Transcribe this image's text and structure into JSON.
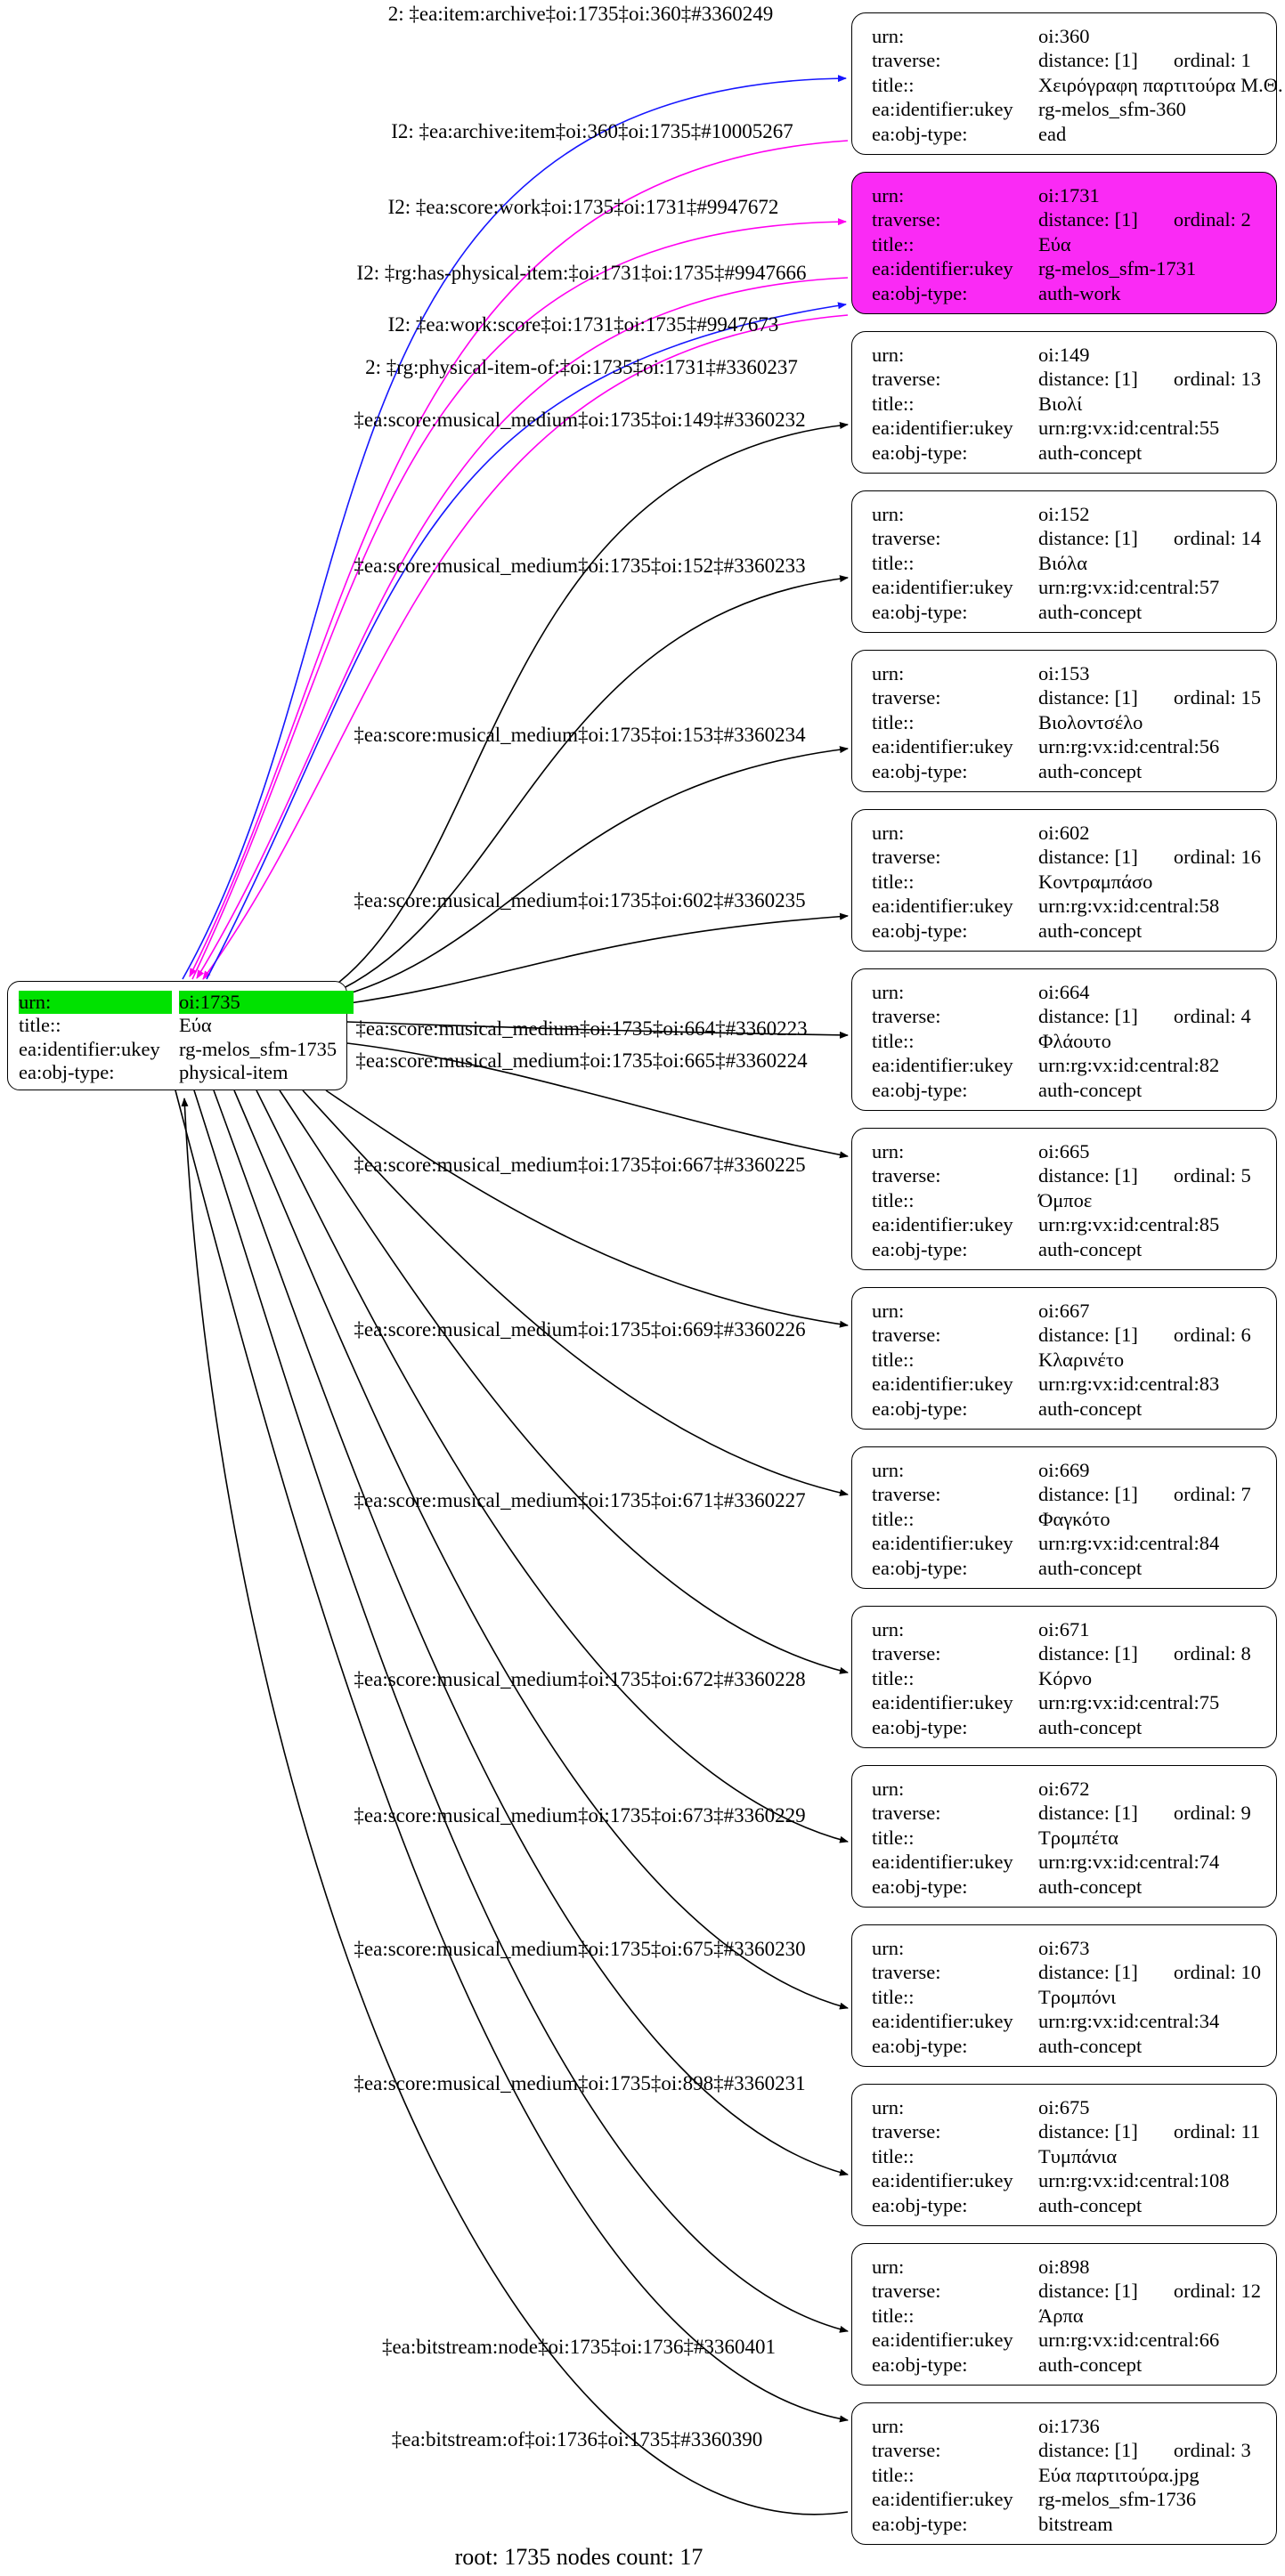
{
  "diagram": {
    "caption": "root: 1735 nodes count: 17",
    "field_labels": {
      "urn": "urn:",
      "traverse": "traverse:",
      "title": "title::",
      "identifier": "ea:identifier:ukey",
      "objtype": "ea:obj-type:"
    },
    "root": {
      "urn_label": "urn:",
      "urn_value": "oi:1735",
      "title_label": "title::",
      "title_value": "Εύα",
      "identifier_label": "ea:identifier:ukey",
      "identifier_value": "rg-melos_sfm-1735",
      "objtype_label": "ea:obj-type:",
      "objtype_value": "physical-item"
    },
    "nodes": [
      {
        "urn": "oi:360",
        "distance": "distance: [1]",
        "ordinal": "ordinal: 1",
        "title": "Χειρόγραφη παρτιτούρα Μ.Θ.",
        "identifier": "rg-melos_sfm-360",
        "objtype": "ead",
        "fill": "white"
      },
      {
        "urn": "oi:1731",
        "distance": "distance: [1]",
        "ordinal": "ordinal: 2",
        "title": "Εύα",
        "identifier": "rg-melos_sfm-1731",
        "objtype": "auth-work",
        "fill": "magenta"
      },
      {
        "urn": "oi:149",
        "distance": "distance: [1]",
        "ordinal": "ordinal: 13",
        "title": "Βιολί",
        "identifier": "urn:rg:vx:id:central:55",
        "objtype": "auth-concept",
        "fill": "white"
      },
      {
        "urn": "oi:152",
        "distance": "distance: [1]",
        "ordinal": "ordinal: 14",
        "title": "Βιόλα",
        "identifier": "urn:rg:vx:id:central:57",
        "objtype": "auth-concept",
        "fill": "white"
      },
      {
        "urn": "oi:153",
        "distance": "distance: [1]",
        "ordinal": "ordinal: 15",
        "title": "Βιολοντσέλο",
        "identifier": "urn:rg:vx:id:central:56",
        "objtype": "auth-concept",
        "fill": "white"
      },
      {
        "urn": "oi:602",
        "distance": "distance: [1]",
        "ordinal": "ordinal: 16",
        "title": "Κοντραμπάσο",
        "identifier": "urn:rg:vx:id:central:58",
        "objtype": "auth-concept",
        "fill": "white"
      },
      {
        "urn": "oi:664",
        "distance": "distance: [1]",
        "ordinal": "ordinal: 4",
        "title": "Φλάουτο",
        "identifier": "urn:rg:vx:id:central:82",
        "objtype": "auth-concept",
        "fill": "white"
      },
      {
        "urn": "oi:665",
        "distance": "distance: [1]",
        "ordinal": "ordinal: 5",
        "title": "Όμποε",
        "identifier": "urn:rg:vx:id:central:85",
        "objtype": "auth-concept",
        "fill": "white"
      },
      {
        "urn": "oi:667",
        "distance": "distance: [1]",
        "ordinal": "ordinal: 6",
        "title": "Κλαρινέτο",
        "identifier": "urn:rg:vx:id:central:83",
        "objtype": "auth-concept",
        "fill": "white"
      },
      {
        "urn": "oi:669",
        "distance": "distance: [1]",
        "ordinal": "ordinal: 7",
        "title": "Φαγκότο",
        "identifier": "urn:rg:vx:id:central:84",
        "objtype": "auth-concept",
        "fill": "white"
      },
      {
        "urn": "oi:671",
        "distance": "distance: [1]",
        "ordinal": "ordinal: 8",
        "title": "Κόρνο",
        "identifier": "urn:rg:vx:id:central:75",
        "objtype": "auth-concept",
        "fill": "white"
      },
      {
        "urn": "oi:672",
        "distance": "distance: [1]",
        "ordinal": "ordinal: 9",
        "title": "Τρομπέτα",
        "identifier": "urn:rg:vx:id:central:74",
        "objtype": "auth-concept",
        "fill": "white"
      },
      {
        "urn": "oi:673",
        "distance": "distance: [1]",
        "ordinal": "ordinal: 10",
        "title": "Τρομπόνι",
        "identifier": "urn:rg:vx:id:central:34",
        "objtype": "auth-concept",
        "fill": "white"
      },
      {
        "urn": "oi:675",
        "distance": "distance: [1]",
        "ordinal": "ordinal: 11",
        "title": "Τυμπάνια",
        "identifier": "urn:rg:vx:id:central:108",
        "objtype": "auth-concept",
        "fill": "white"
      },
      {
        "urn": "oi:898",
        "distance": "distance: [1]",
        "ordinal": "ordinal: 12",
        "title": "Άρπα",
        "identifier": "urn:rg:vx:id:central:66",
        "objtype": "auth-concept",
        "fill": "white"
      },
      {
        "urn": "oi:1736",
        "distance": "distance: [1]",
        "ordinal": "ordinal: 3",
        "title": "Εύα παρτιτούρα.jpg",
        "identifier": "rg-melos_sfm-1736",
        "objtype": "bitstream",
        "fill": "white"
      }
    ],
    "edges": [
      {
        "label": "2: ‡ea:item:archive‡oi:1735‡oi:360‡#3360249",
        "color": "blue"
      },
      {
        "label": "I2: ‡ea:archive:item‡oi:360‡oi:1735‡#10005267",
        "color": "magenta"
      },
      {
        "label": "I2: ‡ea:score:work‡oi:1735‡oi:1731‡#9947672",
        "color": "magenta"
      },
      {
        "label": "I2: ‡rg:has-physical-item:‡oi:1731‡oi:1735‡#9947666",
        "color": "magenta"
      },
      {
        "label": "I2: ‡ea:work:score‡oi:1731‡oi:1735‡#9947673",
        "color": "magenta"
      },
      {
        "label": "2: ‡rg:physical-item-of:‡oi:1735‡oi:1731‡#3360237",
        "color": "blue"
      },
      {
        "label": "‡ea:score:musical_medium‡oi:1735‡oi:149‡#3360232",
        "color": "black"
      },
      {
        "label": "‡ea:score:musical_medium‡oi:1735‡oi:152‡#3360233",
        "color": "black"
      },
      {
        "label": "‡ea:score:musical_medium‡oi:1735‡oi:153‡#3360234",
        "color": "black"
      },
      {
        "label": "‡ea:score:musical_medium‡oi:1735‡oi:602‡#3360235",
        "color": "black"
      },
      {
        "label": "‡ea:score:musical_medium‡oi:1735‡oi:664‡#3360223",
        "color": "black"
      },
      {
        "label": "‡ea:score:musical_medium‡oi:1735‡oi:665‡#3360224",
        "color": "black"
      },
      {
        "label": "‡ea:score:musical_medium‡oi:1735‡oi:667‡#3360225",
        "color": "black"
      },
      {
        "label": "‡ea:score:musical_medium‡oi:1735‡oi:669‡#3360226",
        "color": "black"
      },
      {
        "label": "‡ea:score:musical_medium‡oi:1735‡oi:671‡#3360227",
        "color": "black"
      },
      {
        "label": "‡ea:score:musical_medium‡oi:1735‡oi:672‡#3360228",
        "color": "black"
      },
      {
        "label": "‡ea:score:musical_medium‡oi:1735‡oi:673‡#3360229",
        "color": "black"
      },
      {
        "label": "‡ea:score:musical_medium‡oi:1735‡oi:675‡#3360230",
        "color": "black"
      },
      {
        "label": "‡ea:score:musical_medium‡oi:1735‡oi:898‡#3360231",
        "color": "black"
      },
      {
        "label": "‡ea:bitstream:node‡oi:1735‡oi:1736‡#3360401",
        "color": "black"
      },
      {
        "label": "‡ea:bitstream:of‡oi:1736‡oi:1735‡#3360390",
        "color": "black"
      }
    ]
  },
  "colors": {
    "blue": "#1616ff",
    "magenta": "#ff00f0",
    "black": "#000000",
    "node_magenta": "#fa2af5",
    "highlight_green": "#00e200"
  }
}
